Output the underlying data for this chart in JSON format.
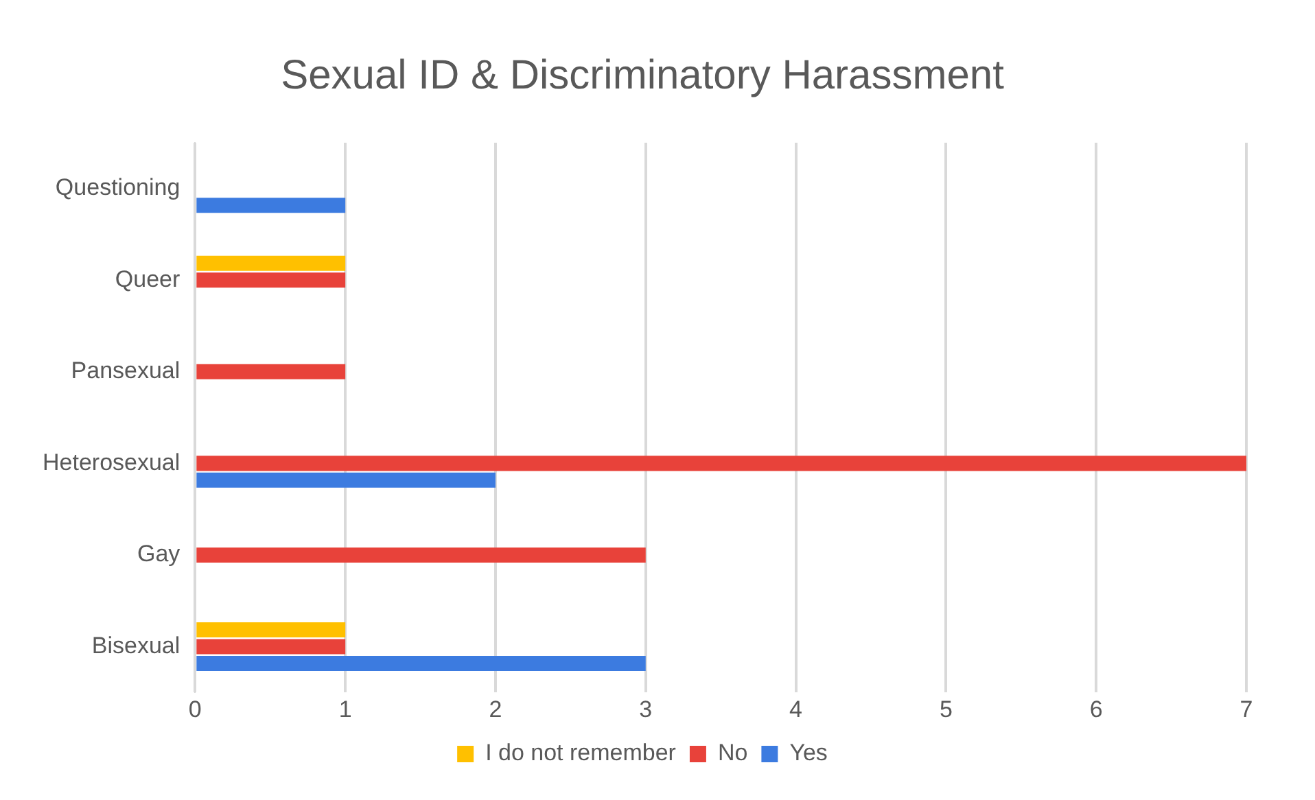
{
  "chart_data": {
    "type": "bar",
    "orientation": "horizontal",
    "title": "Sexual ID & Discriminatory Harassment",
    "categories": [
      "Questioning",
      "Queer",
      "Pansexual",
      "Heterosexual",
      "Gay",
      "Bisexual"
    ],
    "series": [
      {
        "name": "I do not remember",
        "color": "#ffc000",
        "values": [
          0,
          1,
          0,
          0,
          0,
          1
        ]
      },
      {
        "name": "No",
        "color": "#e8423a",
        "values": [
          0,
          1,
          1,
          7,
          3,
          1
        ]
      },
      {
        "name": "Yes",
        "color": "#3c7be0",
        "values": [
          1,
          0,
          0,
          2,
          0,
          3
        ]
      }
    ],
    "xlim": [
      0,
      7
    ],
    "xticks": [
      0,
      1,
      2,
      3,
      4,
      5,
      6,
      7
    ],
    "grid": "x",
    "legend": "bottom"
  }
}
